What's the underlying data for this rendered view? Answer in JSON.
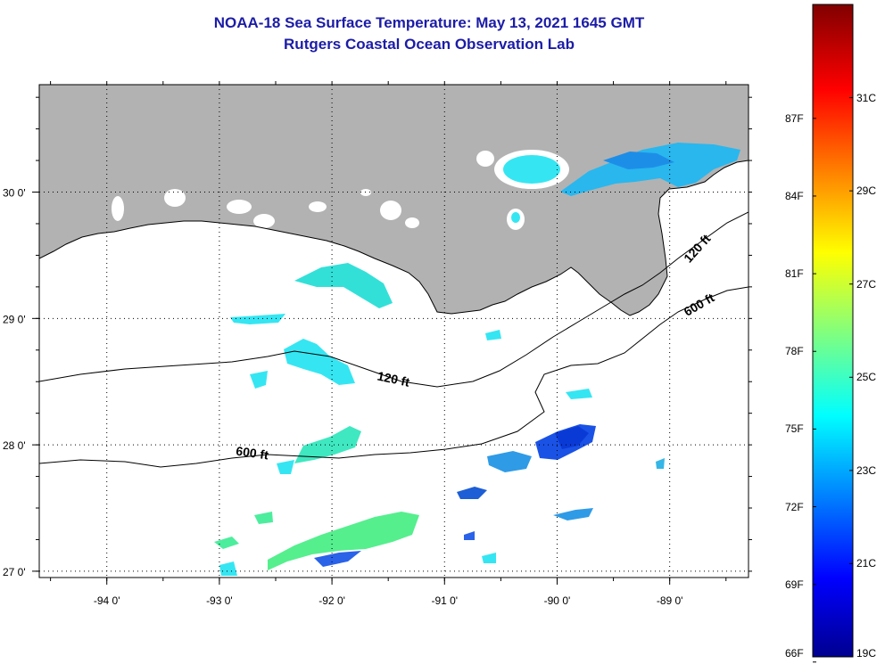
{
  "title": {
    "line1": "NOAA-18 Sea Surface Temperature:  May 13, 2021 1645 GMT",
    "line2": "Rutgers Coastal Ocean Observation Lab"
  },
  "map": {
    "lon_range": [
      -94.6,
      -88.3
    ],
    "lat_range": [
      26.95,
      30.85
    ],
    "x_ticks": [
      {
        "lon": -94,
        "label": "-94 0'"
      },
      {
        "lon": -93,
        "label": "-93 0'"
      },
      {
        "lon": -92,
        "label": "-92 0'"
      },
      {
        "lon": -91,
        "label": "-91 0'"
      },
      {
        "lon": -90,
        "label": "-90 0'"
      },
      {
        "lon": -89,
        "label": "-89 0'"
      }
    ],
    "y_ticks": [
      {
        "lat": 30,
        "label": "30 0'"
      },
      {
        "lat": 29,
        "label": "29 0'"
      },
      {
        "lat": 28,
        "label": "28 0'"
      },
      {
        "lat": 27,
        "label": "27 0'"
      }
    ],
    "contour_labels": [
      "120 ft",
      "120 ft",
      "600 ft",
      "600 ft"
    ],
    "land_color": "#b2b2b2",
    "cloud_color": "#ffffff"
  },
  "colorbar": {
    "min_c": 19,
    "max_c": 33,
    "celsius_labels": [
      "31C",
      "29C",
      "27C",
      "25C",
      "23C",
      "21C",
      "19C"
    ],
    "fahrenheit_labels": [
      "87F",
      "84F",
      "81F",
      "78F",
      "75F",
      "72F",
      "69F",
      "66F"
    ]
  }
}
